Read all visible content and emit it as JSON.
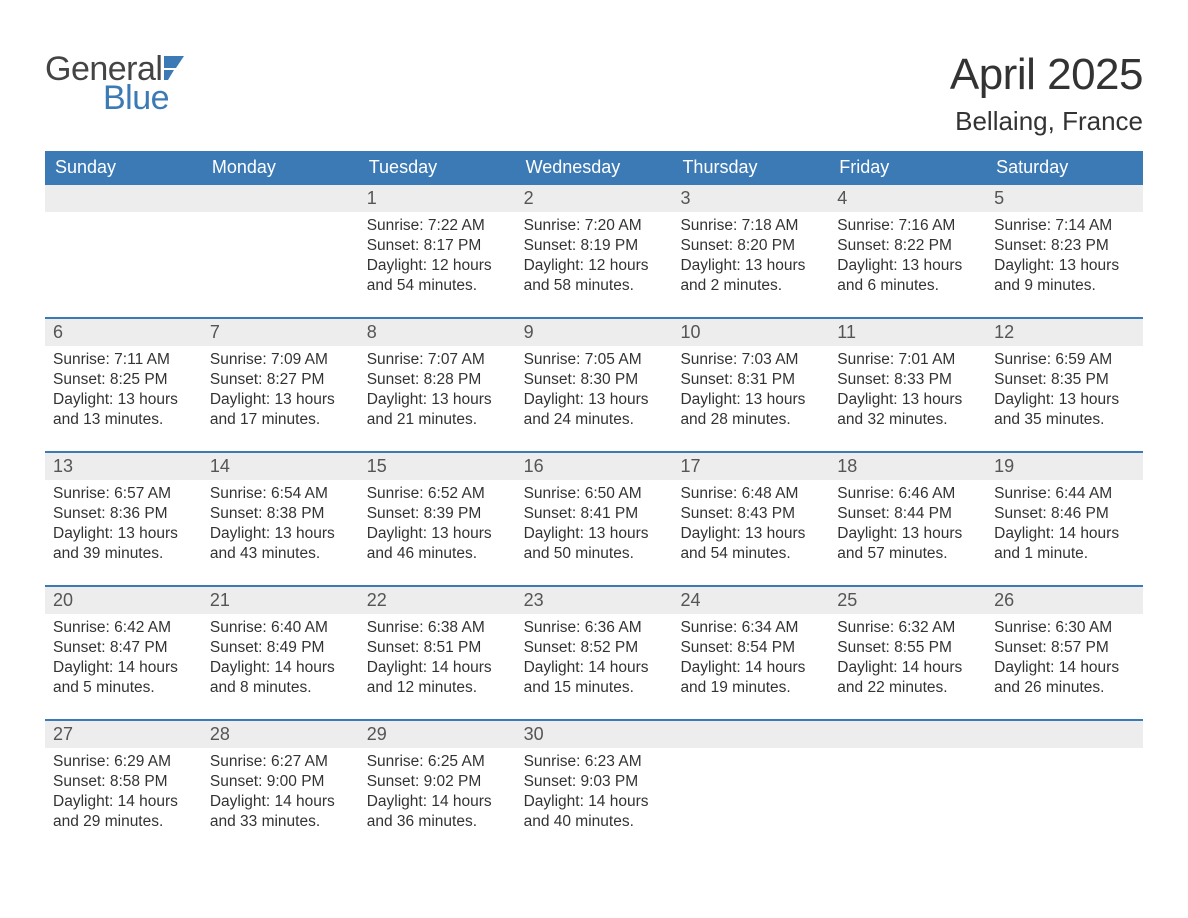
{
  "logo": {
    "text1": "General",
    "text2": "Blue",
    "icon_color": "#3c7ab5"
  },
  "title": "April 2025",
  "location": "Bellaing, France",
  "colors": {
    "header_bg": "#3c7ab5",
    "header_text": "#ffffff",
    "daynum_bg": "#ededed",
    "week_border": "#3c7ab5",
    "body_text": "#333333"
  },
  "typography": {
    "title_fontsize": 44,
    "location_fontsize": 26,
    "dow_fontsize": 18,
    "daynum_fontsize": 18,
    "body_fontsize": 15.5
  },
  "days_of_week": [
    "Sunday",
    "Monday",
    "Tuesday",
    "Wednesday",
    "Thursday",
    "Friday",
    "Saturday"
  ],
  "weeks": [
    [
      {
        "n": "",
        "sr": "",
        "ss": "",
        "dl": ""
      },
      {
        "n": "",
        "sr": "",
        "ss": "",
        "dl": ""
      },
      {
        "n": "1",
        "sr": "Sunrise: 7:22 AM",
        "ss": "Sunset: 8:17 PM",
        "dl": "Daylight: 12 hours and 54 minutes."
      },
      {
        "n": "2",
        "sr": "Sunrise: 7:20 AM",
        "ss": "Sunset: 8:19 PM",
        "dl": "Daylight: 12 hours and 58 minutes."
      },
      {
        "n": "3",
        "sr": "Sunrise: 7:18 AM",
        "ss": "Sunset: 8:20 PM",
        "dl": "Daylight: 13 hours and 2 minutes."
      },
      {
        "n": "4",
        "sr": "Sunrise: 7:16 AM",
        "ss": "Sunset: 8:22 PM",
        "dl": "Daylight: 13 hours and 6 minutes."
      },
      {
        "n": "5",
        "sr": "Sunrise: 7:14 AM",
        "ss": "Sunset: 8:23 PM",
        "dl": "Daylight: 13 hours and 9 minutes."
      }
    ],
    [
      {
        "n": "6",
        "sr": "Sunrise: 7:11 AM",
        "ss": "Sunset: 8:25 PM",
        "dl": "Daylight: 13 hours and 13 minutes."
      },
      {
        "n": "7",
        "sr": "Sunrise: 7:09 AM",
        "ss": "Sunset: 8:27 PM",
        "dl": "Daylight: 13 hours and 17 minutes."
      },
      {
        "n": "8",
        "sr": "Sunrise: 7:07 AM",
        "ss": "Sunset: 8:28 PM",
        "dl": "Daylight: 13 hours and 21 minutes."
      },
      {
        "n": "9",
        "sr": "Sunrise: 7:05 AM",
        "ss": "Sunset: 8:30 PM",
        "dl": "Daylight: 13 hours and 24 minutes."
      },
      {
        "n": "10",
        "sr": "Sunrise: 7:03 AM",
        "ss": "Sunset: 8:31 PM",
        "dl": "Daylight: 13 hours and 28 minutes."
      },
      {
        "n": "11",
        "sr": "Sunrise: 7:01 AM",
        "ss": "Sunset: 8:33 PM",
        "dl": "Daylight: 13 hours and 32 minutes."
      },
      {
        "n": "12",
        "sr": "Sunrise: 6:59 AM",
        "ss": "Sunset: 8:35 PM",
        "dl": "Daylight: 13 hours and 35 minutes."
      }
    ],
    [
      {
        "n": "13",
        "sr": "Sunrise: 6:57 AM",
        "ss": "Sunset: 8:36 PM",
        "dl": "Daylight: 13 hours and 39 minutes."
      },
      {
        "n": "14",
        "sr": "Sunrise: 6:54 AM",
        "ss": "Sunset: 8:38 PM",
        "dl": "Daylight: 13 hours and 43 minutes."
      },
      {
        "n": "15",
        "sr": "Sunrise: 6:52 AM",
        "ss": "Sunset: 8:39 PM",
        "dl": "Daylight: 13 hours and 46 minutes."
      },
      {
        "n": "16",
        "sr": "Sunrise: 6:50 AM",
        "ss": "Sunset: 8:41 PM",
        "dl": "Daylight: 13 hours and 50 minutes."
      },
      {
        "n": "17",
        "sr": "Sunrise: 6:48 AM",
        "ss": "Sunset: 8:43 PM",
        "dl": "Daylight: 13 hours and 54 minutes."
      },
      {
        "n": "18",
        "sr": "Sunrise: 6:46 AM",
        "ss": "Sunset: 8:44 PM",
        "dl": "Daylight: 13 hours and 57 minutes."
      },
      {
        "n": "19",
        "sr": "Sunrise: 6:44 AM",
        "ss": "Sunset: 8:46 PM",
        "dl": "Daylight: 14 hours and 1 minute."
      }
    ],
    [
      {
        "n": "20",
        "sr": "Sunrise: 6:42 AM",
        "ss": "Sunset: 8:47 PM",
        "dl": "Daylight: 14 hours and 5 minutes."
      },
      {
        "n": "21",
        "sr": "Sunrise: 6:40 AM",
        "ss": "Sunset: 8:49 PM",
        "dl": "Daylight: 14 hours and 8 minutes."
      },
      {
        "n": "22",
        "sr": "Sunrise: 6:38 AM",
        "ss": "Sunset: 8:51 PM",
        "dl": "Daylight: 14 hours and 12 minutes."
      },
      {
        "n": "23",
        "sr": "Sunrise: 6:36 AM",
        "ss": "Sunset: 8:52 PM",
        "dl": "Daylight: 14 hours and 15 minutes."
      },
      {
        "n": "24",
        "sr": "Sunrise: 6:34 AM",
        "ss": "Sunset: 8:54 PM",
        "dl": "Daylight: 14 hours and 19 minutes."
      },
      {
        "n": "25",
        "sr": "Sunrise: 6:32 AM",
        "ss": "Sunset: 8:55 PM",
        "dl": "Daylight: 14 hours and 22 minutes."
      },
      {
        "n": "26",
        "sr": "Sunrise: 6:30 AM",
        "ss": "Sunset: 8:57 PM",
        "dl": "Daylight: 14 hours and 26 minutes."
      }
    ],
    [
      {
        "n": "27",
        "sr": "Sunrise: 6:29 AM",
        "ss": "Sunset: 8:58 PM",
        "dl": "Daylight: 14 hours and 29 minutes."
      },
      {
        "n": "28",
        "sr": "Sunrise: 6:27 AM",
        "ss": "Sunset: 9:00 PM",
        "dl": "Daylight: 14 hours and 33 minutes."
      },
      {
        "n": "29",
        "sr": "Sunrise: 6:25 AM",
        "ss": "Sunset: 9:02 PM",
        "dl": "Daylight: 14 hours and 36 minutes."
      },
      {
        "n": "30",
        "sr": "Sunrise: 6:23 AM",
        "ss": "Sunset: 9:03 PM",
        "dl": "Daylight: 14 hours and 40 minutes."
      },
      {
        "n": "",
        "sr": "",
        "ss": "",
        "dl": ""
      },
      {
        "n": "",
        "sr": "",
        "ss": "",
        "dl": ""
      },
      {
        "n": "",
        "sr": "",
        "ss": "",
        "dl": ""
      }
    ]
  ]
}
